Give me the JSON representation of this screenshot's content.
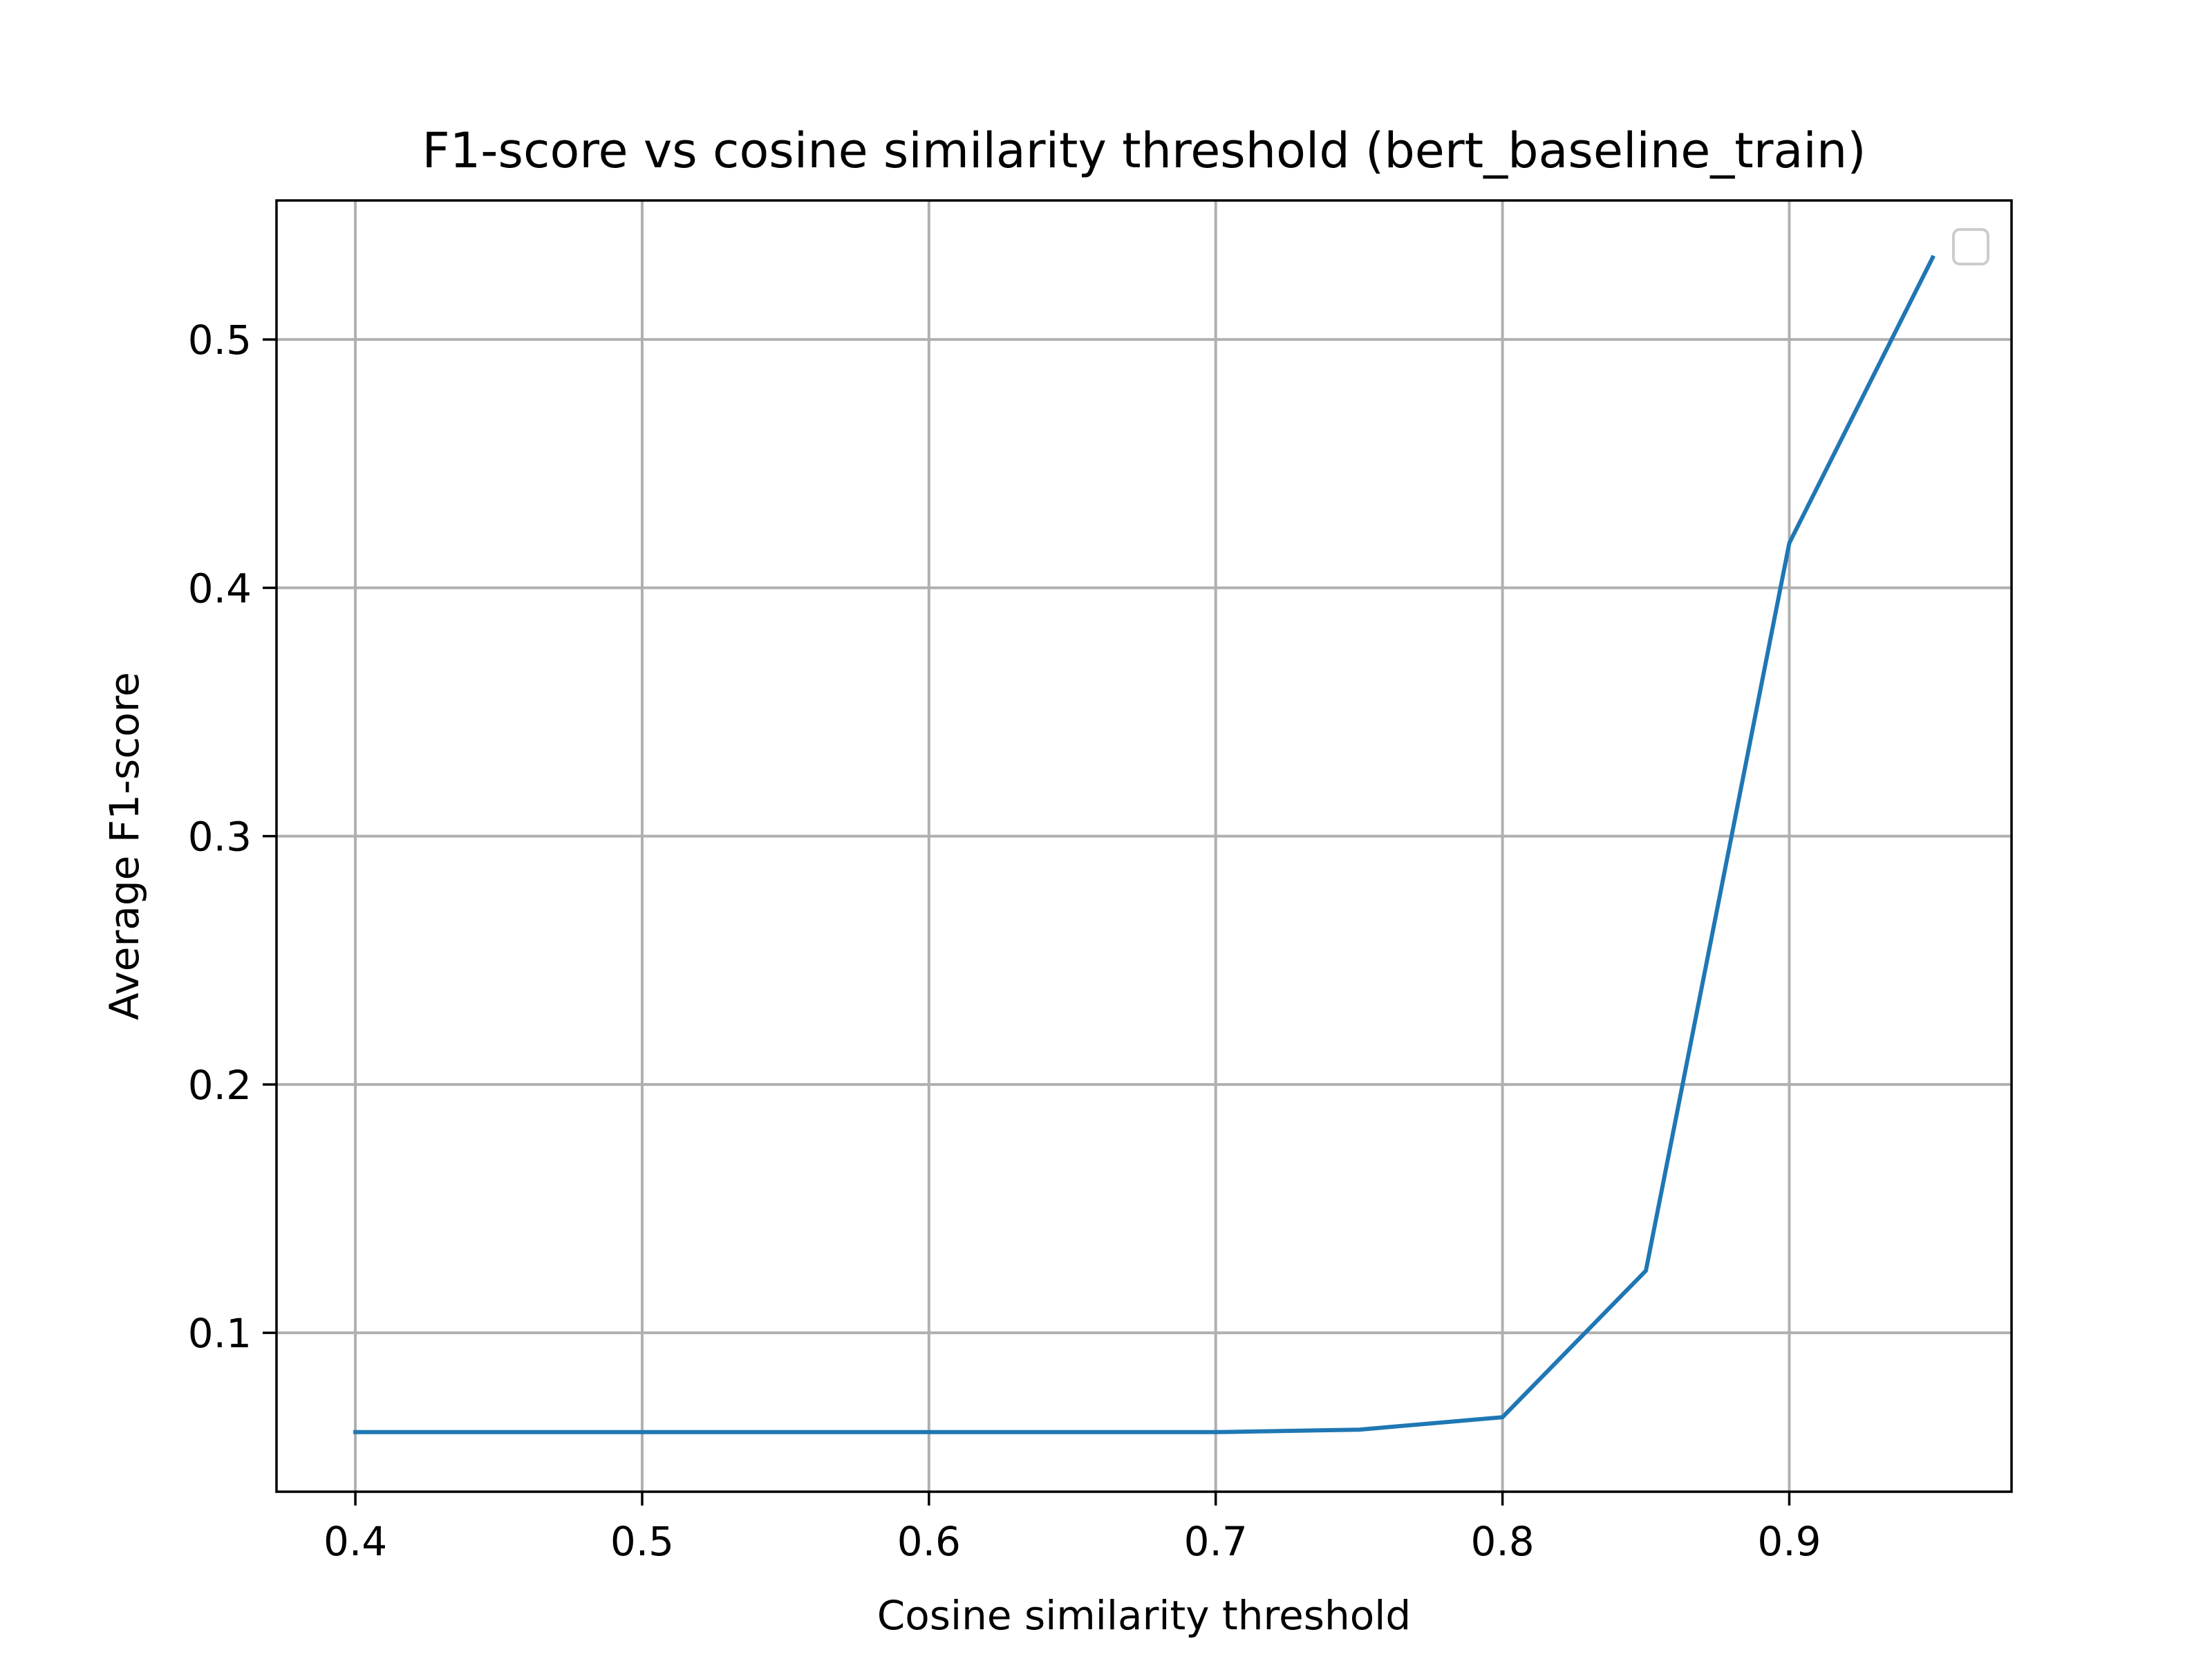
{
  "chart_data": {
    "type": "line",
    "title": "F1-score vs cosine similarity threshold (bert_baseline_train)",
    "xlabel": "Cosine similarity threshold",
    "ylabel": "Average F1-score",
    "xlim": [
      0.3725,
      0.9775
    ],
    "ylim": [
      0.036,
      0.556
    ],
    "x_ticks": [
      0.4,
      0.5,
      0.6,
      0.7,
      0.8,
      0.9
    ],
    "x_tick_labels": [
      "0.4",
      "0.5",
      "0.6",
      "0.7",
      "0.8",
      "0.9"
    ],
    "y_ticks": [
      0.1,
      0.2,
      0.3,
      0.4,
      0.5
    ],
    "y_tick_labels": [
      "0.1",
      "0.2",
      "0.3",
      "0.4",
      "0.5"
    ],
    "grid": true,
    "legend": {
      "placement": "top-right",
      "entries": []
    },
    "series": [
      {
        "color": "#1f77b4",
        "x": [
          0.4,
          0.45,
          0.5,
          0.55,
          0.6,
          0.65,
          0.7,
          0.75,
          0.8,
          0.85,
          0.9,
          0.95
        ],
        "y": [
          0.06,
          0.06,
          0.06,
          0.06,
          0.06,
          0.06,
          0.06,
          0.061,
          0.066,
          0.125,
          0.418,
          0.533
        ]
      }
    ]
  }
}
